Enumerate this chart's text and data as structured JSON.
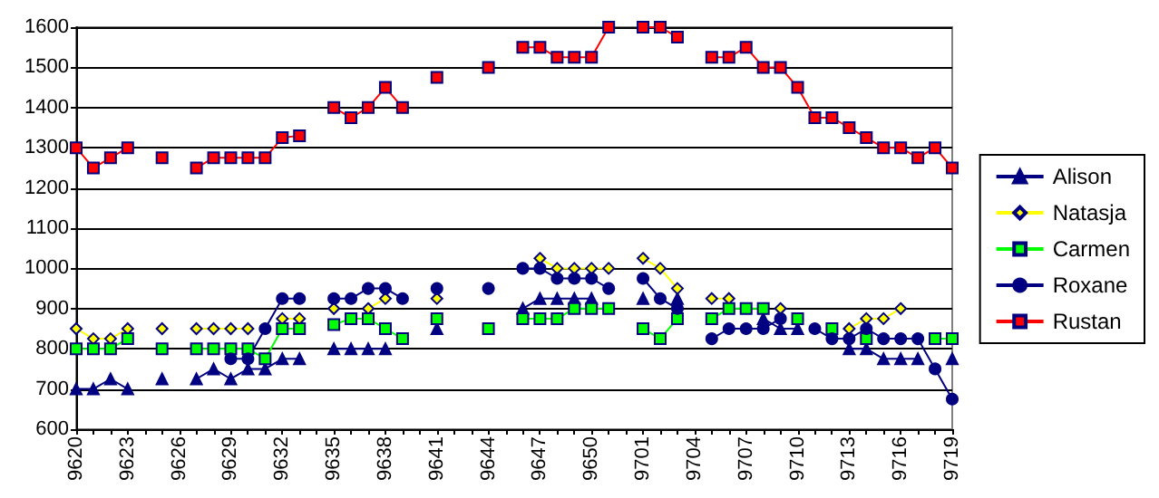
{
  "chart_data": {
    "type": "line",
    "categories": [
      "9620",
      null,
      null,
      "9623",
      null,
      null,
      "9626",
      null,
      null,
      "9629",
      null,
      null,
      "9632",
      null,
      null,
      "9635",
      null,
      null,
      "9638",
      null,
      null,
      "9641",
      null,
      null,
      "9644",
      null,
      null,
      "9647",
      null,
      null,
      "9650",
      null,
      null,
      "9701",
      null,
      null,
      "9704",
      null,
      null,
      "9707",
      null,
      null,
      "9710",
      null,
      null,
      "9713",
      null,
      null,
      "9716",
      null,
      null,
      "9719"
    ],
    "series": [
      {
        "name": "Alison",
        "color": "#000080",
        "marker": "triangle",
        "values": [
          700,
          700,
          725,
          700,
          null,
          725,
          null,
          725,
          750,
          725,
          750,
          750,
          775,
          775,
          null,
          800,
          800,
          800,
          800,
          null,
          null,
          850,
          null,
          null,
          null,
          null,
          900,
          925,
          925,
          925,
          925,
          null,
          null,
          925,
          null,
          925,
          null,
          null,
          null,
          null,
          875,
          850,
          850,
          null,
          null,
          800,
          800,
          775,
          775,
          775,
          null,
          775
        ]
      },
      {
        "name": "Natasja",
        "color": "#ffff00",
        "marker": "diamond",
        "values": [
          850,
          825,
          825,
          850,
          null,
          850,
          null,
          850,
          850,
          850,
          850,
          null,
          875,
          875,
          null,
          900,
          null,
          900,
          925,
          null,
          null,
          925,
          null,
          null,
          null,
          null,
          null,
          1025,
          1000,
          1000,
          1000,
          1000,
          null,
          1025,
          1000,
          950,
          null,
          925,
          925,
          null,
          null,
          900,
          null,
          null,
          null,
          850,
          875,
          875,
          900,
          null,
          null,
          null
        ]
      },
      {
        "name": "Carmen",
        "color": "#00ff00",
        "marker": "square",
        "values": [
          800,
          800,
          800,
          825,
          null,
          800,
          null,
          800,
          800,
          800,
          800,
          775,
          850,
          850,
          null,
          860,
          875,
          875,
          850,
          825,
          null,
          875,
          null,
          null,
          850,
          null,
          875,
          875,
          875,
          900,
          900,
          900,
          null,
          850,
          825,
          875,
          null,
          875,
          900,
          900,
          900,
          null,
          875,
          null,
          850,
          null,
          825,
          null,
          null,
          null,
          825,
          825
        ]
      },
      {
        "name": "Roxane",
        "color": "#000080",
        "marker": "circle",
        "values": [
          null,
          null,
          null,
          null,
          null,
          null,
          null,
          null,
          null,
          775,
          775,
          850,
          925,
          925,
          null,
          925,
          925,
          950,
          950,
          925,
          null,
          950,
          null,
          null,
          950,
          null,
          1000,
          1000,
          975,
          975,
          975,
          950,
          null,
          975,
          925,
          900,
          null,
          825,
          850,
          850,
          850,
          875,
          null,
          850,
          825,
          825,
          850,
          825,
          825,
          825,
          750,
          675
        ]
      },
      {
        "name": "Rustan",
        "color": "#ff0000",
        "marker": "square",
        "values": [
          1300,
          1250,
          1275,
          1300,
          null,
          1275,
          null,
          1250,
          1275,
          1275,
          1275,
          1275,
          1325,
          1330,
          null,
          1400,
          1375,
          1400,
          1450,
          1400,
          null,
          1475,
          null,
          null,
          1500,
          null,
          1550,
          1550,
          1525,
          1525,
          1525,
          1600,
          null,
          1600,
          1600,
          1575,
          null,
          1525,
          1525,
          1550,
          1500,
          1500,
          1450,
          1375,
          1375,
          1350,
          1325,
          1300,
          1300,
          1275,
          1300,
          1250
        ]
      }
    ],
    "ylim": [
      600,
      1600
    ],
    "yticks": [
      600,
      700,
      800,
      900,
      1000,
      1100,
      1200,
      1300,
      1400,
      1500,
      1600
    ],
    "grid": "y",
    "legend": "right"
  }
}
